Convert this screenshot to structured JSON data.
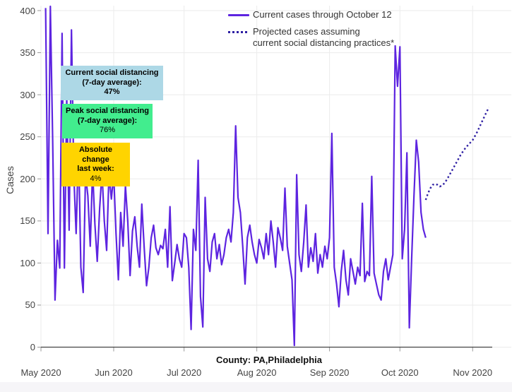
{
  "axis": {
    "y_title": "Cases"
  },
  "legend": {
    "current_label": "Current cases through October 12",
    "projected_label_line1": "Projected cases assuming",
    "projected_label_line2": "current social distancing practices*"
  },
  "annotations": {
    "current": {
      "title": "Current social distancing",
      "subtitle": "(7-day average):",
      "value": "47%"
    },
    "peak": {
      "title": "Peak social distancing",
      "subtitle": "(7-day average):",
      "value": "76%"
    },
    "change": {
      "title": "Absolute change",
      "subtitle": "last week:",
      "value": "4%"
    }
  },
  "footer": {
    "county_label": "County: PA,Philadelphia"
  },
  "colors": {
    "solid_line": "#5d24e0",
    "dotted_line": "#2e1fa3",
    "grid": "#ebebeb",
    "axis_line": "#444444",
    "tick": "#999999",
    "current_box": "#add8e6",
    "peak_box": "#42ed8e",
    "change_box": "#ffd400"
  },
  "chart_data": {
    "type": "line",
    "title": "",
    "xlabel": "County: PA,Philadelphia",
    "ylabel": "Cases",
    "ylim": [
      0,
      400
    ],
    "grid": true,
    "legend_position": "top",
    "y_ticks": [
      0,
      50,
      100,
      150,
      200,
      250,
      300,
      350,
      400
    ],
    "x_ticks": [
      {
        "label": "May 2020",
        "day": 0
      },
      {
        "label": "Jun 2020",
        "day": 31
      },
      {
        "label": "Jul 2020",
        "day": 61
      },
      {
        "label": "Aug 2020",
        "day": 92
      },
      {
        "label": "Sep 2020",
        "day": 123
      },
      {
        "label": "Oct 2020",
        "day": 153
      },
      {
        "label": "Nov 2020",
        "day": 184
      }
    ],
    "series": [
      {
        "name": "Current cases through October 12",
        "style": "solid",
        "start_date": "2020-05-03",
        "start_day_offset": 2,
        "values": [
          403,
          135,
          405,
          245,
          56,
          127,
          94,
          373,
          94,
          298,
          139,
          377,
          205,
          135,
          240,
          95,
          65,
          205,
          180,
          120,
          211,
          146,
          102,
          165,
          208,
          150,
          115,
          206,
          176,
          205,
          135,
          80,
          160,
          120,
          192,
          150,
          85,
          138,
          155,
          120,
          95,
          170,
          118,
          73,
          95,
          130,
          145,
          118,
          110,
          121,
          117,
          140,
          95,
          167,
          79,
          100,
          122,
          105,
          95,
          135,
          130,
          95,
          21,
          140,
          115,
          222,
          60,
          24,
          178,
          105,
          90,
          125,
          135,
          105,
          122,
          98,
          110,
          130,
          140,
          125,
          160,
          263,
          178,
          160,
          120,
          75,
          130,
          145,
          125,
          110,
          100,
          128,
          118,
          105,
          135,
          110,
          150,
          125,
          95,
          142,
          130,
          115,
          189,
          120,
          100,
          80,
          2,
          205,
          110,
          90,
          125,
          169,
          95,
          118,
          102,
          135,
          88,
          110,
          95,
          120,
          105,
          130,
          254,
          95,
          75,
          48,
          90,
          115,
          80,
          62,
          105,
          90,
          75,
          95,
          85,
          171,
          78,
          90,
          85,
          203,
          88,
          75,
          62,
          56,
          90,
          105,
          80,
          95,
          110,
          358,
          310,
          357,
          105,
          140,
          231,
          23,
          105,
          180,
          246,
          220,
          160,
          140,
          130
        ]
      },
      {
        "name": "Projected cases assuming current social distancing practices*",
        "style": "dotted",
        "start_date": "2020-10-12",
        "start_day_offset": 164,
        "values": [
          175,
          183,
          189,
          193,
          194,
          193,
          191,
          192,
          195,
          199,
          204,
          209,
          214,
          219,
          224,
          229,
          233,
          237,
          240,
          243,
          246,
          251,
          256,
          262,
          268,
          274,
          280,
          285
        ]
      }
    ]
  }
}
